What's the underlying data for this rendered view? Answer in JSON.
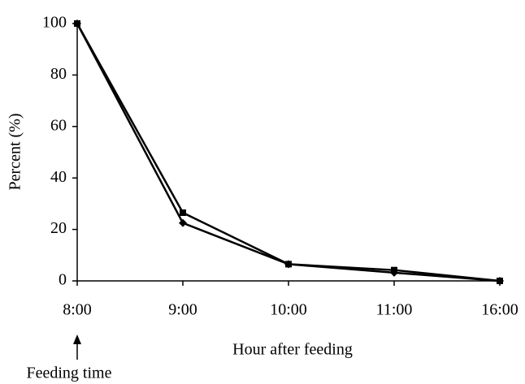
{
  "chart_data": {
    "type": "line",
    "x_label": "Hour after feeding",
    "y_label": "Percent (%)",
    "annotation": "Feeding time",
    "categories": [
      "8:00",
      "9:00",
      "10:00",
      "11:00",
      "16:00"
    ],
    "series": [
      {
        "color": "#000000",
        "marker": "diamond",
        "values": [
          100,
          22.5,
          6.5,
          3.2,
          0
        ]
      },
      {
        "color": "#000000",
        "marker": "square",
        "values": [
          100,
          26.5,
          6.5,
          4.2,
          0
        ]
      }
    ],
    "ylim": [
      0,
      100
    ],
    "yticks": [
      0,
      20,
      40,
      60,
      80,
      100
    ],
    "grid": false
  }
}
